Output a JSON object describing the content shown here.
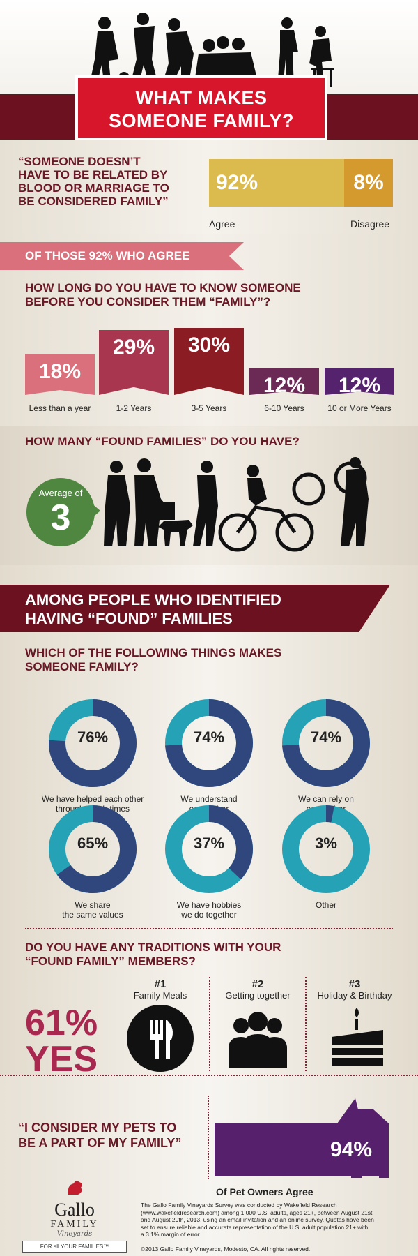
{
  "title": {
    "line1": "WHAT MAKES",
    "line2": "SOMEONE FAMILY?"
  },
  "quote1": {
    "line1": "“SOMEONE DOESN’T",
    "line2": "HAVE TO BE RELATED BY",
    "line3": "BLOOD OR MARRIAGE TO",
    "line4": "BE CONSIDERED FAMILY”",
    "agree_pct": "92%",
    "disagree_pct": "8%",
    "agree_label": "Agree",
    "disagree_label": "Disagree",
    "agree_value": 92,
    "disagree_value": 8
  },
  "ribbon": "OF THOSE 92% WHO AGREE",
  "years": {
    "question_line1": "HOW LONG DO YOU HAVE TO KNOW SOMEONE",
    "question_line2": "BEFORE YOU CONSIDER THEM “FAMILY”?",
    "items": [
      {
        "pct": "18%",
        "label": "Less than a year",
        "value": 18,
        "color": "#d9707c"
      },
      {
        "pct": "29%",
        "label": "1-2 Years",
        "value": 29,
        "color": "#a9364f"
      },
      {
        "pct": "30%",
        "label": "3-5 Years",
        "value": 30,
        "color": "#8c1c24"
      },
      {
        "pct": "12%",
        "label": "6-10 Years",
        "value": 12,
        "color": "#6a2a55"
      },
      {
        "pct": "12%",
        "label": "10 or More Years",
        "value": 12,
        "color": "#55236e"
      }
    ]
  },
  "found": {
    "question": "HOW MANY “FOUND FAMILIES” DO YOU HAVE?",
    "avg_label": "Average of",
    "avg_value": "3"
  },
  "among": {
    "banner_line1": "AMONG PEOPLE WHO IDENTIFIED",
    "banner_line2": "HAVING “FOUND” FAMILIES",
    "question_line1": "WHICH OF THE FOLLOWING THINGS MAKES",
    "question_line2": "SOMEONE FAMILY?",
    "donuts": [
      {
        "pct": "76%",
        "value": 76,
        "label_line1": "We have helped each other",
        "label_line2": "through tough times"
      },
      {
        "pct": "74%",
        "value": 74,
        "label_line1": "We understand",
        "label_line2": "each other"
      },
      {
        "pct": "74%",
        "value": 74,
        "label_line1": "We can rely on",
        "label_line2": "each other"
      },
      {
        "pct": "65%",
        "value": 65,
        "label_line1": "We share",
        "label_line2": "the same values"
      },
      {
        "pct": "37%",
        "value": 37,
        "label_line1": "We have hobbies",
        "label_line2": "we do together"
      },
      {
        "pct": "3%",
        "value": 3,
        "label_line1": "Other",
        "label_line2": ""
      }
    ],
    "donut_colors": {
      "main": "#30477e",
      "rest": "#25a2b5"
    }
  },
  "traditions": {
    "question_line1": "DO YOU HAVE ANY TRADITIONS WITH YOUR",
    "question_line2": "“FOUND FAMILY” MEMBERS?",
    "yes_pct": "61%",
    "yes_word": "YES",
    "items": [
      {
        "rank": "#1",
        "label": "Family Meals",
        "icon": "fork-knife-icon"
      },
      {
        "rank": "#2",
        "label": "Getting together",
        "icon": "people-group-icon"
      },
      {
        "rank": "#3",
        "label": "Holiday & Birthday",
        "icon": "birthday-cake-icon"
      }
    ]
  },
  "pets": {
    "quote_line1": "“I CONSIDER MY PETS TO",
    "quote_line2": "BE A PART OF MY FAMILY”",
    "pct": "94%",
    "value": 94,
    "caption": "Of Pet Owners Agree"
  },
  "footer": {
    "brand": "Gallo",
    "brand2": "FAMILY",
    "script": "Vineyards",
    "tagline": "FOR all YOUR FAMILIES™",
    "line1": "The Gallo Family Vineyards Survey was conducted by Wakefield Research",
    "line2": "(www.wakefieldresearch.com) among 1,000 U.S. adults, ages 21+, between August 21st",
    "line3": "and August 29th, 2013, using an email invitation and an online survey. Quotas have been",
    "line4": "set to ensure reliable and accurate representation of the U.S. adult population 21+ with",
    "line5": "a 3.1% margin of error.",
    "copyright": "©2013 Gallo Family Vineyards, Modesto, CA.  All rights reserved."
  }
}
